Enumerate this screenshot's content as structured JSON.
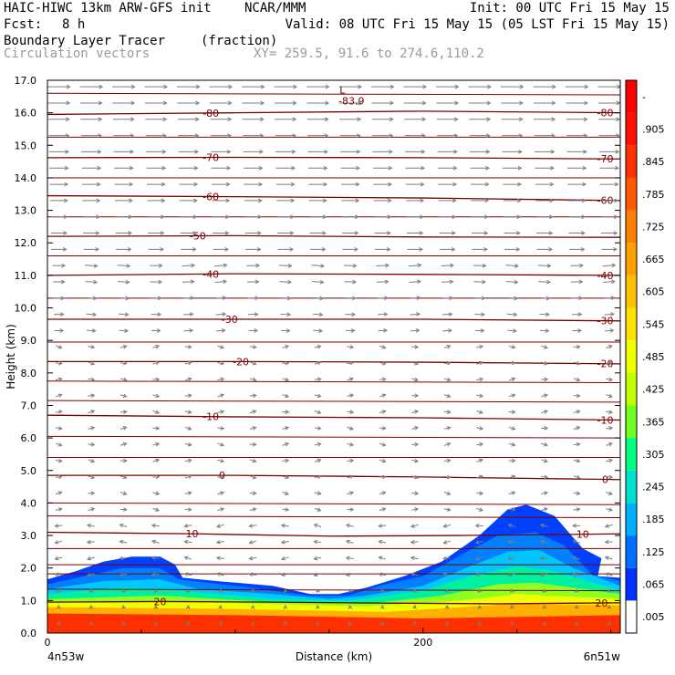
{
  "header": {
    "model": "HAIC-HIWC 13km ARW-GFS init",
    "org": "NCAR/MMM",
    "init": "Init: 00 UTC Fri 15 May 15",
    "fcst_label": "Fcst:",
    "fcst_value": "8 h",
    "valid": "Valid: 08 UTC Fri 15 May 15 (05 LST Fri 15 May 15)",
    "field_name": "Boundary Layer Tracer",
    "field_unit": "(fraction)",
    "vector_name": "Circulation vectors",
    "xy_line": "XY= 259.5, 91.6 to 274.6,110.2"
  },
  "chart_data": {
    "type": "cross-section",
    "ylabel": "Height (km)",
    "xlabel": "Distance (km)",
    "ylim": [
      0,
      17
    ],
    "xlim": [
      0,
      305
    ],
    "y_ticks": [
      "0.0",
      "1.0",
      "2.0",
      "3.0",
      "4.0",
      "5.0",
      "6.0",
      "7.0",
      "8.0",
      "9.0",
      "10.0",
      "11.0",
      "12.0",
      "13.0",
      "14.0",
      "15.0",
      "16.0",
      "17.0"
    ],
    "x_ticks": [
      {
        "x": 0,
        "label": "0"
      },
      {
        "x": 200,
        "label": "200"
      }
    ],
    "x_end_labels": {
      "left": "4n53w",
      "right": "6n51w"
    },
    "colorbar": {
      "labels": [
        ".005",
        ".065",
        ".125",
        ".185",
        ".245",
        ".305",
        ".365",
        ".425",
        ".485",
        ".545",
        ".605",
        ".665",
        ".725",
        ".785",
        ".845",
        ".905",
        "-"
      ],
      "colors": [
        "#ffffff",
        "#0030ff",
        "#0070ff",
        "#00b0ff",
        "#00e0d0",
        "#00ff80",
        "#70ff20",
        "#c0ff00",
        "#f0ff00",
        "#ffe000",
        "#ffc000",
        "#ffa000",
        "#ff8000",
        "#ff5a00",
        "#ff3000",
        "#ff1000",
        "#ff0000"
      ]
    },
    "isotherms": [
      {
        "label": "20",
        "points": [
          [
            0,
            0.95
          ],
          [
            60,
            0.97
          ],
          [
            120,
            0.95
          ],
          [
            180,
            0.92
          ],
          [
            240,
            0.9
          ],
          [
            305,
            0.93
          ]
        ],
        "label_x": [
          60,
          295
        ]
      },
      {
        "label": "10",
        "points": [
          [
            0,
            3.1
          ],
          [
            80,
            3.05
          ],
          [
            150,
            2.98
          ],
          [
            220,
            3.0
          ],
          [
            305,
            3.05
          ]
        ],
        "label_x": [
          77,
          285
        ]
      },
      {
        "label": "0",
        "points": [
          [
            0,
            4.85
          ],
          [
            100,
            4.85
          ],
          [
            200,
            4.8
          ],
          [
            305,
            4.72
          ]
        ],
        "label_x": [
          93,
          305
        ]
      },
      {
        "label": "-10",
        "points": [
          [
            0,
            6.7
          ],
          [
            100,
            6.65
          ],
          [
            200,
            6.62
          ],
          [
            305,
            6.55
          ]
        ],
        "label_x": [
          87,
          308
        ]
      },
      {
        "label": "-20",
        "points": [
          [
            0,
            8.35
          ],
          [
            100,
            8.35
          ],
          [
            200,
            8.33
          ],
          [
            305,
            8.28
          ]
        ],
        "label_x": [
          103,
          308
        ]
      },
      {
        "label": "-30",
        "points": [
          [
            0,
            9.65
          ],
          [
            100,
            9.65
          ],
          [
            200,
            9.65
          ],
          [
            305,
            9.6
          ]
        ],
        "label_x": [
          97,
          297
        ]
      },
      {
        "label": "-40",
        "points": [
          [
            0,
            11.0
          ],
          [
            100,
            11.05
          ],
          [
            200,
            11.03
          ],
          [
            305,
            11.0
          ]
        ],
        "label_x": [
          87,
          297
        ]
      },
      {
        "label": "-50",
        "points": [
          [
            0,
            12.2
          ],
          [
            100,
            12.22
          ],
          [
            200,
            12.18
          ],
          [
            305,
            12.17
          ]
        ],
        "label_x": [
          80,
          -1
        ]
      },
      {
        "label": "-60",
        "points": [
          [
            0,
            13.45
          ],
          [
            100,
            13.42
          ],
          [
            200,
            13.38
          ],
          [
            305,
            13.3
          ]
        ],
        "label_x": [
          87,
          305
        ]
      },
      {
        "label": "-70",
        "points": [
          [
            0,
            14.62
          ],
          [
            100,
            14.63
          ],
          [
            200,
            14.62
          ],
          [
            305,
            14.58
          ]
        ],
        "label_x": [
          87,
          300
        ]
      },
      {
        "label": "-80",
        "points": [
          [
            0,
            15.95
          ],
          [
            100,
            16.0
          ],
          [
            200,
            16.05
          ],
          [
            305,
            16.0
          ]
        ],
        "label_x": [
          87,
          305
        ]
      }
    ],
    "extra_lines": [
      [
        [
          0,
          1.82
        ],
        [
          305,
          1.82
        ]
      ],
      [
        [
          0,
          1.35
        ],
        [
          305,
          1.3
        ]
      ],
      [
        [
          0,
          2.1
        ],
        [
          305,
          2.1
        ]
      ],
      [
        [
          0,
          2.6
        ],
        [
          305,
          2.6
        ]
      ],
      [
        [
          0,
          3.6
        ],
        [
          305,
          3.55
        ]
      ],
      [
        [
          0,
          4.0
        ],
        [
          305,
          3.95
        ]
      ],
      [
        [
          0,
          5.4
        ],
        [
          305,
          5.4
        ]
      ],
      [
        [
          0,
          6.05
        ],
        [
          305,
          6.0
        ]
      ],
      [
        [
          0,
          7.15
        ],
        [
          305,
          7.1
        ]
      ],
      [
        [
          0,
          7.75
        ],
        [
          305,
          7.7
        ]
      ],
      [
        [
          0,
          8.95
        ],
        [
          305,
          8.95
        ]
      ],
      [
        [
          0,
          10.3
        ],
        [
          305,
          10.3
        ]
      ],
      [
        [
          0,
          11.6
        ],
        [
          305,
          11.6
        ]
      ],
      [
        [
          0,
          12.8
        ],
        [
          305,
          12.8
        ]
      ],
      [
        [
          0,
          14.0
        ],
        [
          305,
          14.0
        ]
      ],
      [
        [
          0,
          15.25
        ],
        [
          305,
          15.25
        ]
      ],
      [
        [
          0,
          16.6
        ],
        [
          305,
          16.55
        ]
      ]
    ],
    "low_marker": {
      "label": "L",
      "value": "-83.9",
      "x": 157,
      "y": 16.6
    },
    "tracer_layers": [
      {
        "color": "#0040ff",
        "top": [
          [
            0,
            1.65
          ],
          [
            15,
            1.9
          ],
          [
            30,
            2.2
          ],
          [
            45,
            2.35
          ],
          [
            60,
            2.35
          ],
          [
            68,
            2.1
          ],
          [
            72,
            1.7
          ],
          [
            90,
            1.6
          ],
          [
            120,
            1.45
          ],
          [
            140,
            1.2
          ],
          [
            155,
            1.2
          ],
          [
            170,
            1.4
          ],
          [
            190,
            1.75
          ],
          [
            210,
            2.2
          ],
          [
            230,
            3.0
          ],
          [
            245,
            3.8
          ],
          [
            255,
            3.95
          ],
          [
            270,
            3.6
          ],
          [
            285,
            2.6
          ],
          [
            295,
            2.3
          ],
          [
            293,
            1.75
          ],
          [
            305,
            1.7
          ]
        ]
      },
      {
        "color": "#0080ff",
        "top": [
          [
            0,
            1.5
          ],
          [
            20,
            1.75
          ],
          [
            40,
            2.0
          ],
          [
            60,
            2.0
          ],
          [
            70,
            1.65
          ],
          [
            100,
            1.45
          ],
          [
            140,
            1.15
          ],
          [
            160,
            1.15
          ],
          [
            180,
            1.5
          ],
          [
            200,
            1.75
          ],
          [
            220,
            2.4
          ],
          [
            240,
            3.0
          ],
          [
            260,
            3.1
          ],
          [
            275,
            2.7
          ],
          [
            290,
            1.8
          ],
          [
            305,
            1.6
          ]
        ]
      },
      {
        "color": "#00c8ff",
        "top": [
          [
            0,
            1.35
          ],
          [
            30,
            1.6
          ],
          [
            60,
            1.65
          ],
          [
            80,
            1.35
          ],
          [
            120,
            1.2
          ],
          [
            150,
            1.05
          ],
          [
            170,
            1.15
          ],
          [
            200,
            1.45
          ],
          [
            225,
            2.05
          ],
          [
            245,
            2.5
          ],
          [
            262,
            2.55
          ],
          [
            280,
            2.0
          ],
          [
            305,
            1.45
          ]
        ]
      },
      {
        "color": "#00f0a0",
        "top": [
          [
            0,
            1.2
          ],
          [
            40,
            1.4
          ],
          [
            70,
            1.3
          ],
          [
            120,
            1.05
          ],
          [
            160,
            1.0
          ],
          [
            200,
            1.3
          ],
          [
            225,
            1.75
          ],
          [
            250,
            2.05
          ],
          [
            270,
            1.9
          ],
          [
            305,
            1.3
          ]
        ]
      },
      {
        "color": "#90ff20",
        "top": [
          [
            0,
            1.05
          ],
          [
            60,
            1.15
          ],
          [
            120,
            0.95
          ],
          [
            170,
            0.9
          ],
          [
            210,
            1.15
          ],
          [
            240,
            1.5
          ],
          [
            260,
            1.55
          ],
          [
            305,
            1.2
          ]
        ]
      },
      {
        "color": "#f0ff00",
        "top": [
          [
            0,
            0.95
          ],
          [
            80,
            0.95
          ],
          [
            170,
            0.82
          ],
          [
            220,
            1.0
          ],
          [
            250,
            1.2
          ],
          [
            305,
            1.05
          ]
        ]
      },
      {
        "color": "#ffb000",
        "top": [
          [
            0,
            0.8
          ],
          [
            90,
            0.75
          ],
          [
            180,
            0.65
          ],
          [
            250,
            0.9
          ],
          [
            305,
            0.85
          ]
        ]
      },
      {
        "color": "#ff3000",
        "top": [
          [
            0,
            0.6
          ],
          [
            100,
            0.55
          ],
          [
            200,
            0.45
          ],
          [
            305,
            0.55
          ]
        ]
      }
    ]
  }
}
